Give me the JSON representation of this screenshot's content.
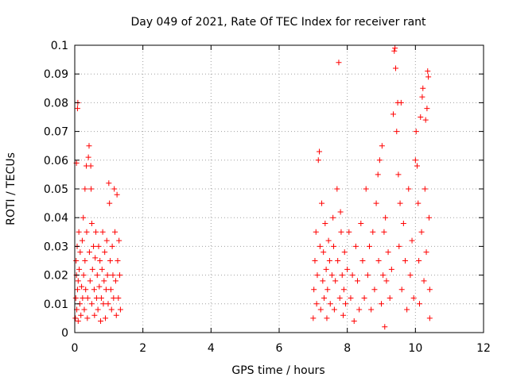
{
  "chart_data": {
    "type": "scatter",
    "title": "Day 049 of 2021, Rate Of TEC Index for receiver rant",
    "xlabel": "GPS time / hours",
    "ylabel": "ROTI / TECUs",
    "xlim": [
      0,
      12
    ],
    "ylim": [
      0,
      0.1
    ],
    "xticks": [
      0,
      2,
      4,
      6,
      8,
      10,
      12
    ],
    "xtick_labels": [
      "0",
      "2",
      "4",
      "6",
      "8",
      "10",
      "12"
    ],
    "yticks": [
      0,
      0.01,
      0.02,
      0.03,
      0.04,
      0.05,
      0.06,
      0.07,
      0.08,
      0.09,
      0.1
    ],
    "ytick_labels": [
      "0",
      "0.01",
      "0.02",
      "0.03",
      "0.04",
      "0.05",
      "0.06",
      "0.07",
      "0.08",
      "0.09",
      "0.1"
    ],
    "grid": true,
    "marker": "+",
    "color": "#ff0000",
    "series": [
      {
        "values": [
          [
            0.02,
            0.005
          ],
          [
            0.03,
            0.012
          ],
          [
            0.04,
            0.025
          ],
          [
            0.05,
            0.02
          ],
          [
            0.05,
            0.059
          ],
          [
            0.06,
            0.008
          ],
          [
            0.07,
            0.03
          ],
          [
            0.08,
            0.015
          ],
          [
            0.08,
            0.078
          ],
          [
            0.09,
            0.08
          ],
          [
            0.1,
            0.004
          ],
          [
            0.1,
            0.018
          ],
          [
            0.12,
            0.035
          ],
          [
            0.13,
            0.022
          ],
          [
            0.15,
            0.01
          ],
          [
            0.16,
            0.028
          ],
          [
            0.18,
            0.006
          ],
          [
            0.2,
            0.016
          ],
          [
            0.22,
            0.032
          ],
          [
            0.23,
            0.012
          ],
          [
            0.25,
            0.04
          ],
          [
            0.26,
            0.02
          ],
          [
            0.28,
            0.008
          ],
          [
            0.3,
            0.05
          ],
          [
            0.3,
            0.025
          ],
          [
            0.32,
            0.015
          ],
          [
            0.34,
            0.058
          ],
          [
            0.35,
            0.035
          ],
          [
            0.37,
            0.005
          ],
          [
            0.38,
            0.012
          ],
          [
            0.4,
            0.061
          ],
          [
            0.42,
            0.065
          ],
          [
            0.43,
            0.028
          ],
          [
            0.45,
            0.018
          ],
          [
            0.47,
            0.058
          ],
          [
            0.48,
            0.05
          ],
          [
            0.5,
            0.038
          ],
          [
            0.5,
            0.01
          ],
          [
            0.52,
            0.022
          ],
          [
            0.55,
            0.03
          ],
          [
            0.57,
            0.015
          ],
          [
            0.58,
            0.006
          ],
          [
            0.6,
            0.026
          ],
          [
            0.62,
            0.035
          ],
          [
            0.64,
            0.012
          ],
          [
            0.66,
            0.02
          ],
          [
            0.68,
            0.008
          ],
          [
            0.7,
            0.03
          ],
          [
            0.72,
            0.016
          ],
          [
            0.74,
            0.025
          ],
          [
            0.76,
            0.004
          ],
          [
            0.78,
            0.012
          ],
          [
            0.8,
            0.022
          ],
          [
            0.82,
            0.035
          ],
          [
            0.84,
            0.01
          ],
          [
            0.86,
            0.018
          ],
          [
            0.88,
            0.028
          ],
          [
            0.9,
            0.005
          ],
          [
            0.92,
            0.015
          ],
          [
            0.94,
            0.032
          ],
          [
            0.96,
            0.02
          ],
          [
            0.98,
            0.01
          ],
          [
            1.0,
            0.052
          ],
          [
            1.02,
            0.045
          ],
          [
            1.04,
            0.025
          ],
          [
            1.06,
            0.015
          ],
          [
            1.08,
            0.008
          ],
          [
            1.1,
            0.03
          ],
          [
            1.12,
            0.02
          ],
          [
            1.14,
            0.012
          ],
          [
            1.16,
            0.05
          ],
          [
            1.18,
            0.035
          ],
          [
            1.2,
            0.018
          ],
          [
            1.22,
            0.006
          ],
          [
            1.24,
            0.048
          ],
          [
            1.26,
            0.025
          ],
          [
            1.28,
            0.012
          ],
          [
            1.3,
            0.032
          ],
          [
            1.32,
            0.02
          ],
          [
            1.34,
            0.008
          ],
          [
            7.0,
            0.005
          ],
          [
            7.02,
            0.015
          ],
          [
            7.05,
            0.025
          ],
          [
            7.08,
            0.035
          ],
          [
            7.1,
            0.01
          ],
          [
            7.12,
            0.02
          ],
          [
            7.15,
            0.06
          ],
          [
            7.18,
            0.063
          ],
          [
            7.2,
            0.03
          ],
          [
            7.22,
            0.008
          ],
          [
            7.25,
            0.045
          ],
          [
            7.28,
            0.018
          ],
          [
            7.3,
            0.028
          ],
          [
            7.32,
            0.012
          ],
          [
            7.35,
            0.038
          ],
          [
            7.38,
            0.022
          ],
          [
            7.4,
            0.005
          ],
          [
            7.42,
            0.015
          ],
          [
            7.45,
            0.032
          ],
          [
            7.48,
            0.025
          ],
          [
            7.5,
            0.01
          ],
          [
            7.55,
            0.02
          ],
          [
            7.58,
            0.04
          ],
          [
            7.6,
            0.03
          ],
          [
            7.62,
            0.008
          ],
          [
            7.65,
            0.018
          ],
          [
            7.7,
            0.05
          ],
          [
            7.72,
            0.025
          ],
          [
            7.75,
            0.094
          ],
          [
            7.78,
            0.012
          ],
          [
            7.8,
            0.042
          ],
          [
            7.82,
            0.035
          ],
          [
            7.85,
            0.02
          ],
          [
            7.88,
            0.006
          ],
          [
            7.9,
            0.015
          ],
          [
            7.92,
            0.028
          ],
          [
            7.95,
            0.01
          ],
          [
            8.0,
            0.022
          ],
          [
            8.05,
            0.035
          ],
          [
            8.1,
            0.012
          ],
          [
            8.15,
            0.02
          ],
          [
            8.2,
            0.004
          ],
          [
            8.25,
            0.03
          ],
          [
            8.3,
            0.018
          ],
          [
            8.35,
            0.008
          ],
          [
            8.4,
            0.038
          ],
          [
            8.45,
            0.025
          ],
          [
            8.5,
            0.012
          ],
          [
            8.55,
            0.05
          ],
          [
            8.6,
            0.02
          ],
          [
            8.65,
            0.03
          ],
          [
            8.7,
            0.008
          ],
          [
            8.75,
            0.035
          ],
          [
            8.8,
            0.015
          ],
          [
            8.85,
            0.045
          ],
          [
            8.9,
            0.055
          ],
          [
            8.92,
            0.025
          ],
          [
            8.95,
            0.06
          ],
          [
            9.0,
            0.01
          ],
          [
            9.02,
            0.065
          ],
          [
            9.05,
            0.02
          ],
          [
            9.08,
            0.035
          ],
          [
            9.1,
            0.002
          ],
          [
            9.12,
            0.04
          ],
          [
            9.15,
            0.018
          ],
          [
            9.2,
            0.028
          ],
          [
            9.25,
            0.012
          ],
          [
            9.3,
            0.022
          ],
          [
            9.35,
            0.076
          ],
          [
            9.38,
            0.098
          ],
          [
            9.4,
            0.099
          ],
          [
            9.42,
            0.092
          ],
          [
            9.45,
            0.07
          ],
          [
            9.48,
            0.08
          ],
          [
            9.5,
            0.055
          ],
          [
            9.52,
            0.03
          ],
          [
            9.55,
            0.045
          ],
          [
            9.58,
            0.08
          ],
          [
            9.6,
            0.015
          ],
          [
            9.65,
            0.038
          ],
          [
            9.7,
            0.025
          ],
          [
            9.75,
            0.008
          ],
          [
            9.8,
            0.05
          ],
          [
            9.85,
            0.02
          ],
          [
            9.9,
            0.032
          ],
          [
            9.95,
            0.012
          ],
          [
            10.0,
            0.06
          ],
          [
            10.02,
            0.07
          ],
          [
            10.05,
            0.058
          ],
          [
            10.08,
            0.045
          ],
          [
            10.1,
            0.025
          ],
          [
            10.12,
            0.01
          ],
          [
            10.15,
            0.075
          ],
          [
            10.18,
            0.035
          ],
          [
            10.2,
            0.082
          ],
          [
            10.22,
            0.085
          ],
          [
            10.25,
            0.018
          ],
          [
            10.28,
            0.05
          ],
          [
            10.3,
            0.074
          ],
          [
            10.32,
            0.028
          ],
          [
            10.34,
            0.078
          ],
          [
            10.36,
            0.091
          ],
          [
            10.38,
            0.089
          ],
          [
            10.4,
            0.04
          ],
          [
            10.42,
            0.015
          ],
          [
            10.42,
            0.005
          ]
        ]
      }
    ]
  }
}
